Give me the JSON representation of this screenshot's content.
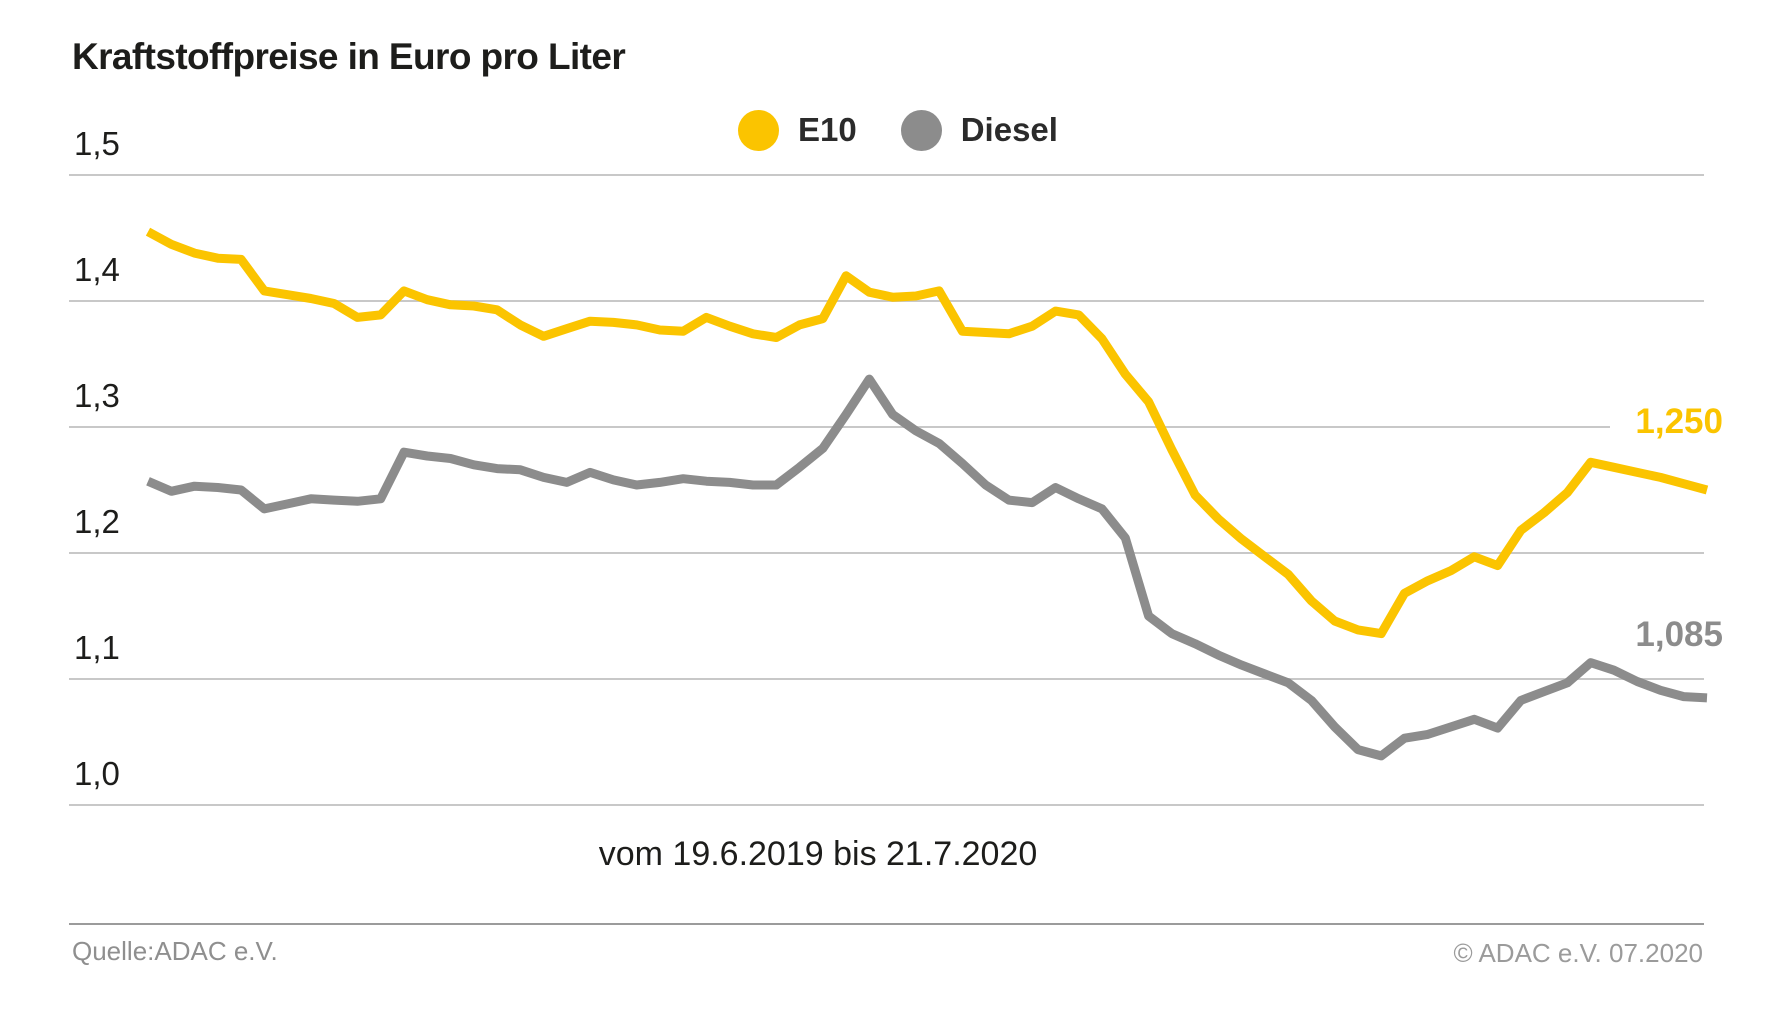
{
  "title": "Kraftstoffpreise in Euro pro Liter",
  "x_axis_label": "vom 19.6.2019 bis 21.7.2020",
  "footer": {
    "source": "Quelle:ADAC e.V.",
    "copyright": "© ADAC e.V. 07.2020"
  },
  "colors": {
    "e10": "#FBC400",
    "diesel": "#8C8C8C",
    "gridline": "#C8C8C8",
    "text": "#1D1D1B",
    "footer_text": "#8F8F8F"
  },
  "chart_data": {
    "type": "line",
    "title": "Kraftstoffpreise in Euro pro Liter",
    "xlabel": "vom 19.6.2019 bis 21.7.2020",
    "x_start": "19.6.2019",
    "x_end": "21.7.2020",
    "ylim": [
      1.0,
      1.5
    ],
    "grid": true,
    "legend_position": "top-center",
    "yticks": [
      {
        "value": 1.5,
        "label": "1,5"
      },
      {
        "value": 1.4,
        "label": "1,4"
      },
      {
        "value": 1.3,
        "label": "1,3"
      },
      {
        "value": 1.2,
        "label": "1,2"
      },
      {
        "value": 1.1,
        "label": "1,1"
      },
      {
        "value": 1.0,
        "label": "1,0"
      }
    ],
    "series": [
      {
        "name": "E10",
        "color": "#FBC400",
        "end_label": "1,250",
        "end_value": 1.25,
        "values": [
          1.455,
          1.445,
          1.438,
          1.434,
          1.433,
          1.408,
          1.405,
          1.402,
          1.398,
          1.387,
          1.389,
          1.408,
          1.401,
          1.397,
          1.396,
          1.393,
          1.381,
          1.372,
          1.378,
          1.384,
          1.383,
          1.381,
          1.377,
          1.376,
          1.387,
          1.38,
          1.374,
          1.371,
          1.381,
          1.386,
          1.42,
          1.407,
          1.403,
          1.404,
          1.408,
          1.376,
          1.375,
          1.374,
          1.38,
          1.392,
          1.389,
          1.37,
          1.342,
          1.32,
          1.282,
          1.246,
          1.227,
          1.211,
          1.197,
          1.183,
          1.162,
          1.146,
          1.139,
          1.136,
          1.168,
          1.178,
          1.186,
          1.197,
          1.19,
          1.218,
          1.232,
          1.248,
          1.272,
          1.268,
          1.264,
          1.26,
          1.255,
          1.25
        ]
      },
      {
        "name": "Diesel",
        "color": "#8C8C8C",
        "end_label": "1,085",
        "end_value": 1.085,
        "values": [
          1.257,
          1.249,
          1.253,
          1.252,
          1.25,
          1.235,
          1.239,
          1.243,
          1.242,
          1.241,
          1.243,
          1.28,
          1.277,
          1.275,
          1.27,
          1.267,
          1.266,
          1.26,
          1.256,
          1.264,
          1.258,
          1.254,
          1.256,
          1.259,
          1.257,
          1.256,
          1.254,
          1.254,
          1.268,
          1.283,
          1.31,
          1.338,
          1.31,
          1.297,
          1.287,
          1.271,
          1.254,
          1.242,
          1.24,
          1.252,
          1.243,
          1.235,
          1.212,
          1.15,
          1.136,
          1.128,
          1.119,
          1.111,
          1.104,
          1.097,
          1.083,
          1.062,
          1.044,
          1.039,
          1.053,
          1.056,
          1.062,
          1.068,
          1.061,
          1.083,
          1.09,
          1.097,
          1.113,
          1.107,
          1.098,
          1.091,
          1.086,
          1.085
        ]
      }
    ]
  }
}
